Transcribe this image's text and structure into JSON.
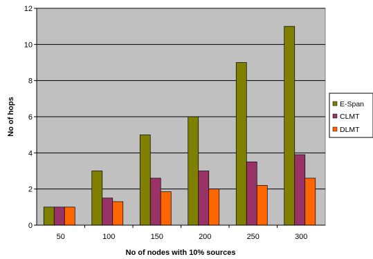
{
  "chart_data": {
    "type": "bar",
    "categories": [
      "50",
      "100",
      "150",
      "200",
      "250",
      "300"
    ],
    "series": [
      {
        "name": "E-Span",
        "color": "#808000",
        "values": [
          1,
          3,
          5,
          6,
          9,
          11
        ]
      },
      {
        "name": "CLMT",
        "color": "#993366",
        "values": [
          1,
          1.5,
          2.6,
          3,
          3.5,
          3.9
        ]
      },
      {
        "name": "DLMT",
        "color": "#FF6600",
        "values": [
          1,
          1.3,
          1.85,
          2,
          2.2,
          2.6
        ]
      }
    ],
    "xlabel": "No of nodes with 10% sources",
    "ylabel": "No of hops",
    "ylim": [
      0,
      12
    ],
    "yticks": [
      "0",
      "2",
      "4",
      "6",
      "8",
      "10",
      "12"
    ],
    "grid": true,
    "legend_position": "right",
    "plot_background": "#C0C0C0"
  }
}
